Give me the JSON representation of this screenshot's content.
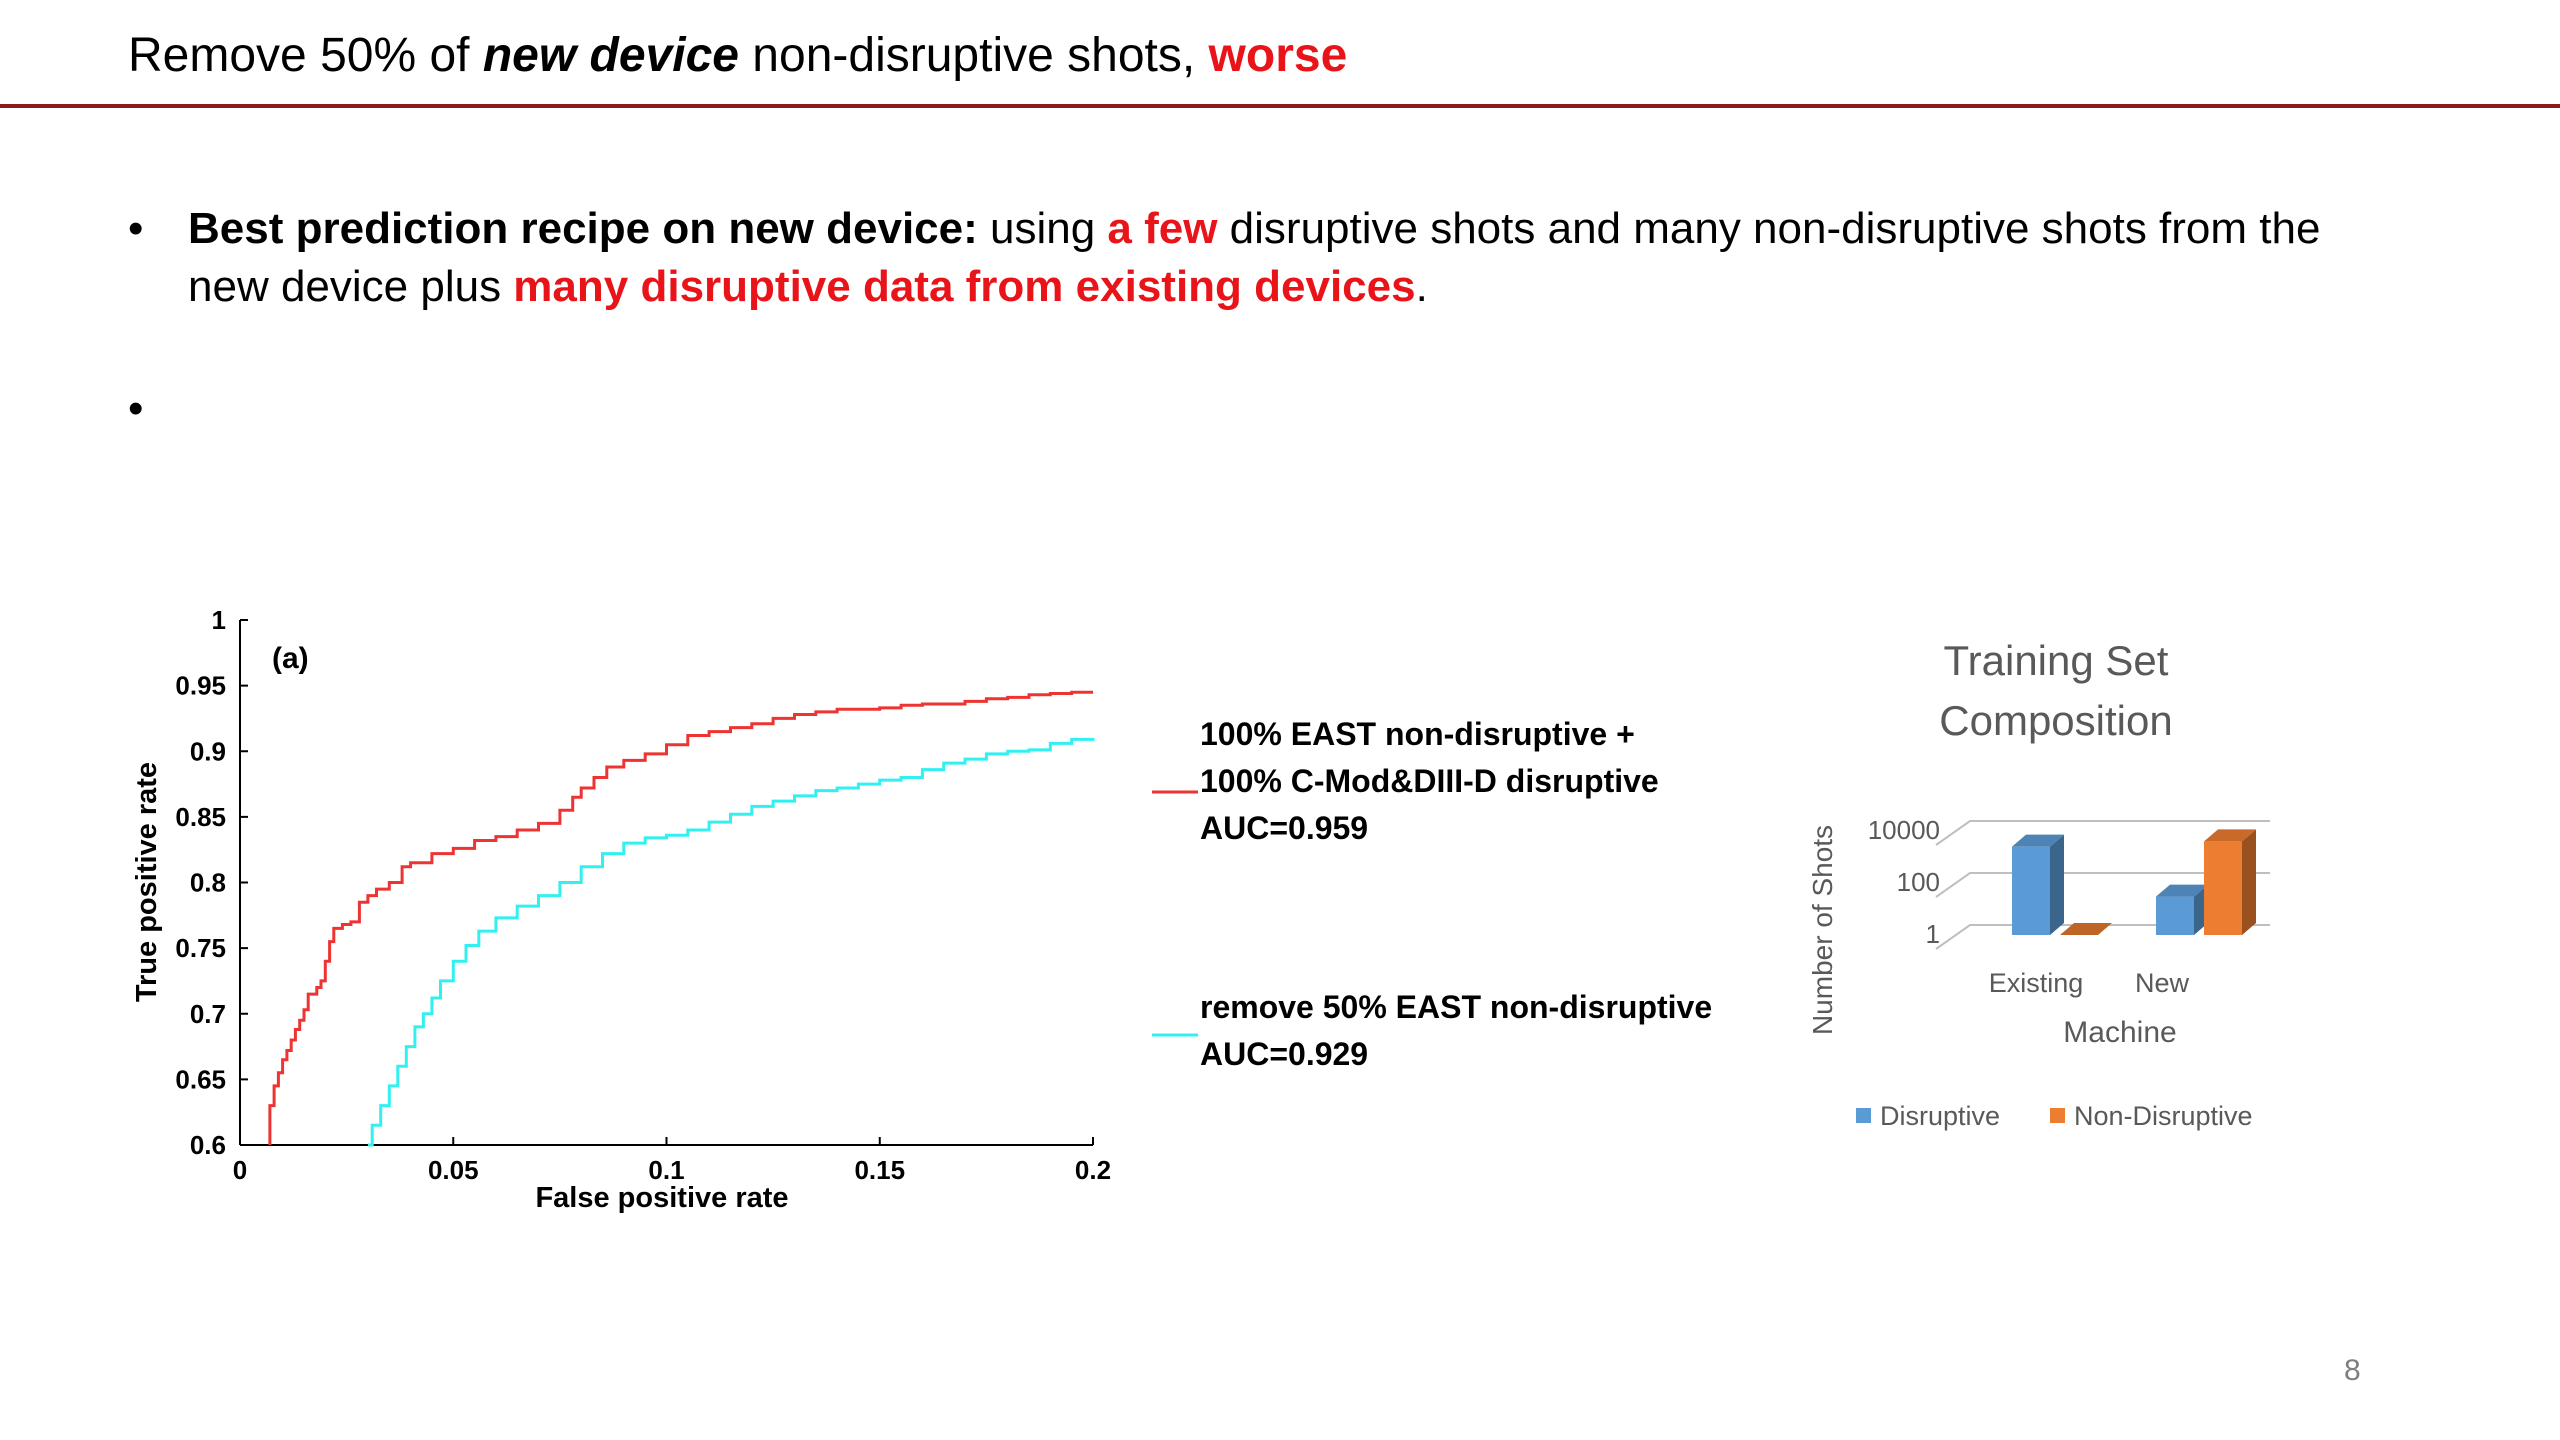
{
  "slide": {
    "title": {
      "part1": "Remove 50% of ",
      "emph": "new device",
      "part2": " non-disruptive shots, ",
      "worse": "worse"
    },
    "bullet1": {
      "bold": "Best prediction recipe on new device:",
      "text1": " using ",
      "red1": "a few",
      "text2": " disruptive shots and many non-disruptive shots from the new device plus ",
      "red2": "many disruptive data from existing devices",
      "text3": "."
    },
    "bullet_symbol": "•",
    "page_number": "8"
  },
  "chart_data": [
    {
      "type": "line",
      "panel_label": "(a)",
      "xlabel": "False positive rate",
      "ylabel": "True positive rate",
      "xlim": [
        0,
        0.2
      ],
      "ylim": [
        0.6,
        1
      ],
      "x_ticks": [
        "0",
        "0.05",
        "0.1",
        "0.15",
        "0.2"
      ],
      "y_ticks": [
        "0.6",
        "0.65",
        "0.7",
        "0.75",
        "0.8",
        "0.85",
        "0.9",
        "0.95",
        "1"
      ],
      "grid": false,
      "legend_position": "right",
      "series": [
        {
          "name": "100% EAST non-disruptive + 100% C-Mod&DIII-D disruptive AUC=0.959",
          "legend_lines": [
            "100% EAST non-disruptive +",
            "100% C-Mod&DIII-D disruptive",
            "AUC=0.959"
          ],
          "color": "#ee3333",
          "x": [
            0.007,
            0.007,
            0.008,
            0.009,
            0.01,
            0.011,
            0.012,
            0.013,
            0.014,
            0.015,
            0.016,
            0.018,
            0.019,
            0.02,
            0.021,
            0.022,
            0.024,
            0.026,
            0.028,
            0.03,
            0.032,
            0.035,
            0.038,
            0.04,
            0.045,
            0.05,
            0.055,
            0.06,
            0.065,
            0.07,
            0.075,
            0.078,
            0.08,
            0.083,
            0.086,
            0.09,
            0.095,
            0.1,
            0.105,
            0.11,
            0.115,
            0.12,
            0.125,
            0.13,
            0.135,
            0.14,
            0.145,
            0.15,
            0.155,
            0.16,
            0.165,
            0.17,
            0.175,
            0.18,
            0.185,
            0.19,
            0.195,
            0.2
          ],
          "y": [
            0.6,
            0.63,
            0.645,
            0.655,
            0.665,
            0.672,
            0.68,
            0.688,
            0.695,
            0.703,
            0.715,
            0.72,
            0.725,
            0.74,
            0.755,
            0.765,
            0.768,
            0.77,
            0.785,
            0.79,
            0.795,
            0.8,
            0.812,
            0.815,
            0.822,
            0.826,
            0.832,
            0.835,
            0.84,
            0.845,
            0.855,
            0.865,
            0.872,
            0.88,
            0.888,
            0.893,
            0.898,
            0.905,
            0.912,
            0.915,
            0.918,
            0.921,
            0.925,
            0.928,
            0.93,
            0.932,
            0.932,
            0.933,
            0.935,
            0.936,
            0.936,
            0.938,
            0.94,
            0.941,
            0.943,
            0.944,
            0.945,
            0.945
          ]
        },
        {
          "name": "remove 50% EAST non-disruptive AUC=0.929",
          "legend_lines": [
            "remove 50% EAST non-disruptive",
            "AUC=0.929"
          ],
          "color": "#33f0f0",
          "x": [
            0.03,
            0.031,
            0.033,
            0.035,
            0.037,
            0.039,
            0.041,
            0.043,
            0.045,
            0.047,
            0.05,
            0.053,
            0.056,
            0.06,
            0.065,
            0.07,
            0.075,
            0.08,
            0.085,
            0.09,
            0.095,
            0.1,
            0.105,
            0.11,
            0.115,
            0.12,
            0.125,
            0.13,
            0.135,
            0.14,
            0.145,
            0.15,
            0.155,
            0.16,
            0.165,
            0.17,
            0.175,
            0.18,
            0.185,
            0.19,
            0.195,
            0.2
          ],
          "y": [
            0.6,
            0.615,
            0.63,
            0.645,
            0.66,
            0.675,
            0.69,
            0.7,
            0.712,
            0.725,
            0.74,
            0.752,
            0.763,
            0.773,
            0.782,
            0.79,
            0.8,
            0.812,
            0.822,
            0.83,
            0.834,
            0.836,
            0.84,
            0.846,
            0.852,
            0.858,
            0.862,
            0.866,
            0.87,
            0.872,
            0.875,
            0.878,
            0.88,
            0.886,
            0.891,
            0.894,
            0.898,
            0.9,
            0.901,
            0.906,
            0.909,
            0.91
          ]
        }
      ]
    },
    {
      "type": "bar",
      "subtype": "3d-clustered-log",
      "title_lines": [
        "Training Set",
        "Composition"
      ],
      "xlabel": "Machine",
      "ylabel": "Number of Shots",
      "y_scale": "log",
      "y_ticks": [
        "10000",
        "100",
        "1"
      ],
      "categories": [
        "Existing",
        "New"
      ],
      "legend_position": "bottom",
      "series": [
        {
          "name": "Disruptive",
          "color": "#5b9bd5",
          "values": [
            2500,
            30
          ]
        },
        {
          "name": "Non-Disruptive",
          "color": "#ed7d31",
          "values": [
            1,
            4000
          ]
        }
      ]
    }
  ]
}
